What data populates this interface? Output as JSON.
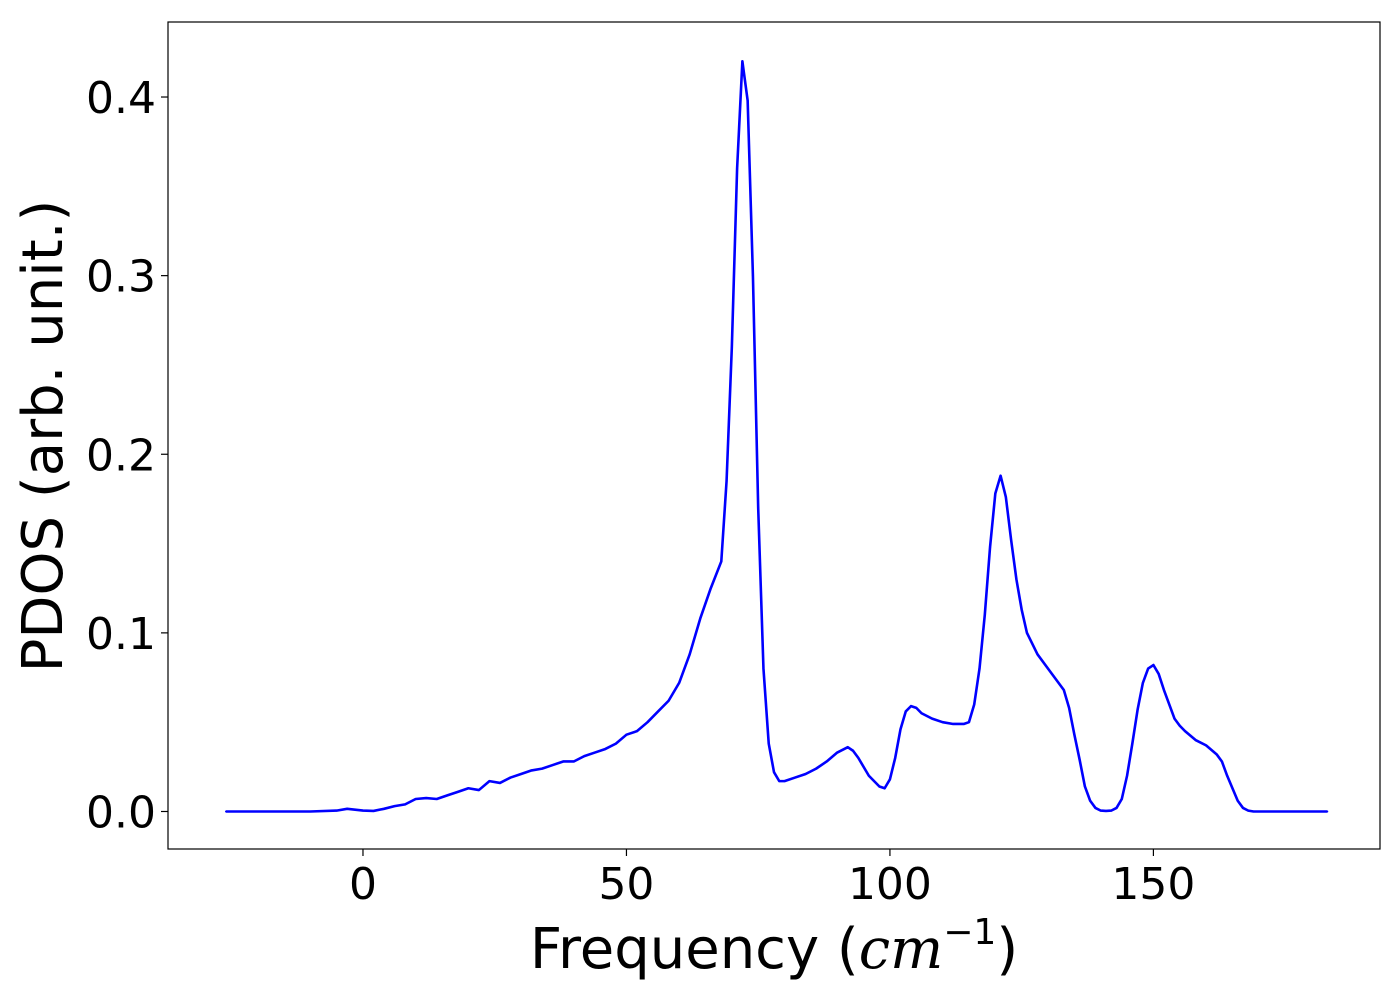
{
  "chart_data": {
    "type": "line",
    "title": "",
    "xlabel_prefix": "Frequency (",
    "xlabel_unit": "cm",
    "xlabel_exp": "−1",
    "xlabel_suffix": ")",
    "ylabel": "PDOS (arb. unit.)",
    "xlim": [
      -37,
      193
    ],
    "ylim": [
      -0.021,
      0.442
    ],
    "xticks": [
      0,
      50,
      100,
      150
    ],
    "xtick_labels": [
      "0",
      "50",
      "100",
      "150"
    ],
    "yticks": [
      0.0,
      0.1,
      0.2,
      0.3,
      0.4
    ],
    "ytick_labels": [
      "0.0",
      "0.1",
      "0.2",
      "0.3",
      "0.4"
    ],
    "grid": false,
    "series": [
      {
        "color": "#0000ff",
        "x": [
          -26,
          -20,
          -10,
          -5,
          -3,
          0,
          2,
          4,
          6,
          8,
          10,
          12,
          14,
          16,
          18,
          20,
          22,
          24,
          26,
          28,
          30,
          32,
          34,
          36,
          38,
          40,
          42,
          44,
          46,
          48,
          50,
          52,
          54,
          56,
          58,
          60,
          62,
          64,
          66,
          68,
          69,
          70,
          71,
          72,
          73,
          74,
          75,
          76,
          77,
          78,
          79,
          80,
          82,
          84,
          86,
          88,
          90,
          92,
          93,
          94,
          96,
          98,
          99,
          100,
          101,
          102,
          103,
          104,
          105,
          106,
          108,
          110,
          112,
          114,
          115,
          116,
          117,
          118,
          119,
          120,
          121,
          122,
          123,
          124,
          125,
          126,
          127,
          128,
          130,
          132,
          133,
          134,
          135,
          136,
          137,
          138,
          139,
          140,
          141,
          142,
          143,
          144,
          145,
          146,
          147,
          148,
          149,
          150,
          151,
          152,
          153,
          154,
          155,
          156,
          158,
          160,
          162,
          163,
          164,
          165,
          166,
          167,
          168,
          169,
          170,
          172,
          175,
          180,
          183
        ],
        "y": [
          0.0,
          0.0,
          0.0,
          0.0005,
          0.0015,
          0.0005,
          0.0003,
          0.0015,
          0.003,
          0.004,
          0.007,
          0.0075,
          0.007,
          0.009,
          0.011,
          0.013,
          0.012,
          0.017,
          0.016,
          0.019,
          0.021,
          0.023,
          0.024,
          0.026,
          0.028,
          0.028,
          0.031,
          0.033,
          0.035,
          0.038,
          0.043,
          0.045,
          0.05,
          0.056,
          0.062,
          0.072,
          0.088,
          0.108,
          0.125,
          0.14,
          0.185,
          0.26,
          0.36,
          0.42,
          0.398,
          0.3,
          0.17,
          0.08,
          0.038,
          0.022,
          0.017,
          0.017,
          0.019,
          0.021,
          0.024,
          0.028,
          0.033,
          0.036,
          0.034,
          0.03,
          0.02,
          0.014,
          0.013,
          0.018,
          0.03,
          0.046,
          0.056,
          0.059,
          0.058,
          0.055,
          0.052,
          0.05,
          0.049,
          0.049,
          0.05,
          0.06,
          0.08,
          0.11,
          0.148,
          0.178,
          0.188,
          0.176,
          0.152,
          0.13,
          0.113,
          0.1,
          0.094,
          0.088,
          0.08,
          0.072,
          0.068,
          0.058,
          0.043,
          0.029,
          0.014,
          0.006,
          0.002,
          0.0005,
          0.0003,
          0.0005,
          0.002,
          0.007,
          0.02,
          0.038,
          0.057,
          0.072,
          0.08,
          0.082,
          0.077,
          0.068,
          0.06,
          0.052,
          0.048,
          0.045,
          0.04,
          0.037,
          0.032,
          0.028,
          0.02,
          0.013,
          0.006,
          0.002,
          0.0005,
          0.0,
          0.0,
          0.0,
          0.0,
          0.0,
          0.0
        ]
      }
    ]
  }
}
